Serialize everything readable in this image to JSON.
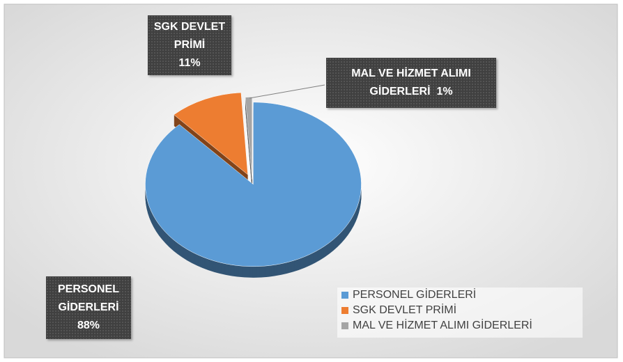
{
  "chart_data": {
    "type": "pie",
    "categories": [
      "PERSONEL GİDERLERİ",
      "SGK DEVLET PRİMİ",
      "MAL VE HİZMET ALIMI GİDERLERİ"
    ],
    "values": [
      88,
      11,
      1
    ],
    "value_labels": [
      "88%",
      "11%",
      "1%"
    ],
    "colors": [
      "#5b9bd5",
      "#ed7d31",
      "#a5a5a5"
    ],
    "legend": "bottom-right"
  }
}
